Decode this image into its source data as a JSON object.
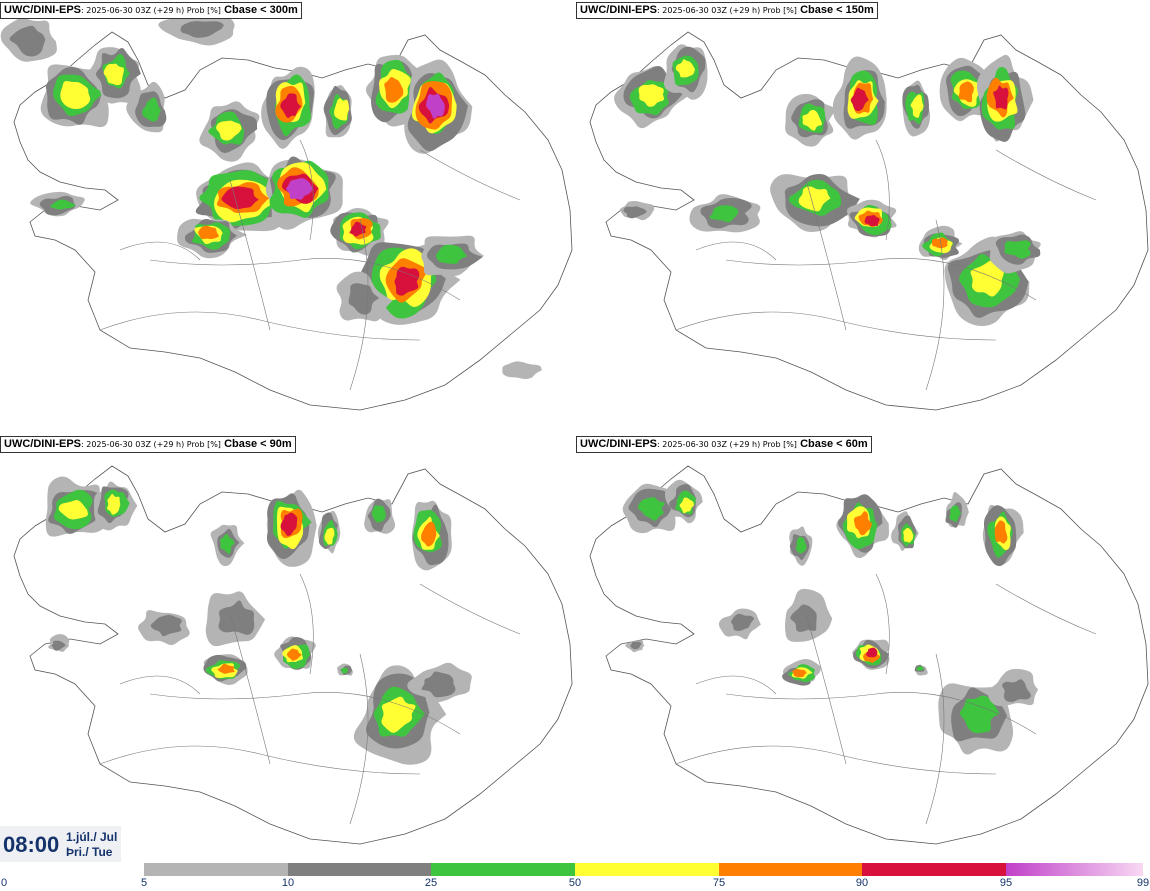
{
  "panels": [
    {
      "model": "UWC/DINI-EPS",
      "meta": ": 2025-06-30 03Z (+29 h) Prob [%]",
      "variable": "Cbase < 300m",
      "level": 300
    },
    {
      "model": "UWC/DINI-EPS",
      "meta": ": 2025-06-30 03Z (+29 h) Prob [%]",
      "variable": "Cbase < 150m",
      "level": 150
    },
    {
      "model": "UWC/DINI-EPS",
      "meta": ": 2025-06-30 03Z (+29 h) Prob [%]",
      "variable": "Cbase < 90m",
      "level": 90
    },
    {
      "model": "UWC/DINI-EPS",
      "meta": ": 2025-06-30 03Z (+29 h) Prob [%]",
      "variable": "Cbase < 60m",
      "level": 60
    }
  ],
  "valid_time": {
    "clock": "08:00",
    "date": "1.júl./ Jul",
    "weekday": "Þri./ Tue"
  },
  "colorbar": {
    "ticks": [
      "0",
      "5",
      "10",
      "25",
      "50",
      "75",
      "90",
      "95",
      "99"
    ],
    "segments": [
      {
        "from": 5,
        "to": 10,
        "color": "#b4b4b4"
      },
      {
        "from": 10,
        "to": 25,
        "color": "#7f7f7f"
      },
      {
        "from": 25,
        "to": 50,
        "color": "#3ec43e"
      },
      {
        "from": 50,
        "to": 75,
        "color": "#ffff33"
      },
      {
        "from": 75,
        "to": 90,
        "color": "#ff7f00"
      },
      {
        "from": 90,
        "to": 95,
        "color": "#d7103c"
      },
      {
        "from": 95,
        "to": 99,
        "color": "#c040c8"
      }
    ]
  }
}
